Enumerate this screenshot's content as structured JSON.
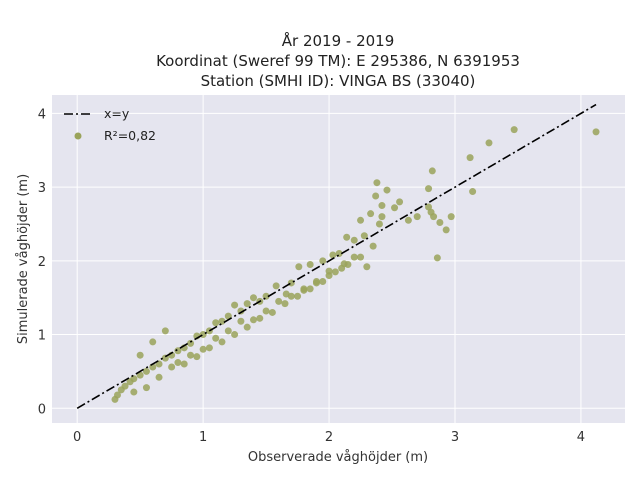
{
  "chart_data": {
    "type": "scatter",
    "title_lines": [
      "År 2019 - 2019",
      "Koordinat (Sweref 99 TM): E 295386, N 6391953",
      "Station (SMHI ID): VINGA BS (33040)"
    ],
    "xlabel": "Observerade våghöjder (m)",
    "ylabel": "Simulerade våghöjder (m)",
    "xlim": [
      -0.2,
      4.35
    ],
    "ylim": [
      -0.2,
      4.25
    ],
    "xticks": [
      0,
      1,
      2,
      3,
      4
    ],
    "yticks": [
      0,
      1,
      2,
      3,
      4
    ],
    "xtick_labels": [
      "0",
      "1",
      "2",
      "3",
      "4"
    ],
    "ytick_labels": [
      "0",
      "1",
      "2",
      "3",
      "4"
    ],
    "grid": true,
    "legend_position": "top-left",
    "series": [
      {
        "name": "x=y",
        "kind": "line",
        "style": "dash-dot",
        "color": "#000000",
        "x": [
          0,
          4.12
        ],
        "y": [
          0,
          4.12
        ]
      },
      {
        "name": "R²=0,82",
        "kind": "scatter",
        "color": "#9aa35a",
        "x": [
          4.12,
          3.47,
          3.27,
          3.12,
          3.14,
          2.97,
          2.93,
          2.88,
          2.86,
          2.82,
          2.79,
          2.79,
          2.81,
          2.83,
          2.7,
          2.63,
          2.56,
          2.52,
          2.46,
          2.42,
          2.42,
          2.38,
          2.37,
          2.33,
          2.4,
          2.35,
          2.28,
          2.25,
          2.3,
          2.2,
          2.14,
          2.12,
          2.08,
          2.03,
          2.0,
          1.95,
          1.9,
          1.85,
          1.8,
          1.76,
          1.7,
          1.66,
          1.58,
          1.5,
          1.45,
          1.4,
          1.35,
          1.3,
          1.25,
          1.2,
          1.15,
          1.1,
          1.05,
          1.0,
          0.95,
          0.9,
          0.85,
          0.8,
          0.75,
          0.7,
          0.65,
          0.6,
          0.55,
          0.5,
          0.45,
          0.42,
          0.38,
          0.35,
          0.32,
          0.3,
          0.45,
          0.55,
          0.65,
          0.75,
          0.85,
          0.95,
          1.05,
          1.15,
          1.25,
          1.35,
          1.45,
          1.55,
          1.65,
          1.75,
          1.85,
          1.95,
          2.05,
          2.15,
          2.25,
          0.5,
          0.6,
          0.7,
          0.8,
          0.9,
          1.0,
          1.1,
          1.2,
          1.3,
          1.4,
          1.5,
          1.6,
          1.7,
          1.8,
          1.9,
          2.0,
          2.1,
          2.2
        ],
        "y": [
          3.75,
          3.78,
          3.6,
          3.4,
          2.94,
          2.6,
          2.42,
          2.52,
          2.04,
          3.22,
          2.98,
          2.73,
          2.66,
          2.6,
          2.6,
          2.55,
          2.8,
          2.72,
          2.96,
          2.75,
          2.6,
          3.06,
          2.88,
          2.64,
          2.5,
          2.2,
          2.34,
          2.55,
          1.92,
          2.28,
          2.32,
          1.96,
          2.1,
          2.08,
          1.86,
          2.0,
          1.7,
          1.95,
          1.62,
          1.92,
          1.7,
          1.55,
          1.66,
          1.52,
          1.45,
          1.5,
          1.42,
          1.32,
          1.4,
          1.25,
          1.18,
          1.16,
          1.05,
          1.0,
          0.98,
          0.88,
          0.82,
          0.78,
          0.72,
          0.68,
          0.6,
          0.56,
          0.5,
          0.45,
          0.4,
          0.36,
          0.3,
          0.25,
          0.18,
          0.12,
          0.22,
          0.28,
          0.42,
          0.56,
          0.6,
          0.7,
          0.82,
          0.9,
          1.0,
          1.1,
          1.22,
          1.3,
          1.42,
          1.52,
          1.62,
          1.72,
          1.85,
          1.95,
          2.05,
          0.72,
          0.9,
          1.05,
          0.62,
          0.72,
          0.8,
          0.95,
          1.05,
          1.18,
          1.2,
          1.32,
          1.45,
          1.52,
          1.6,
          1.72,
          1.8,
          1.9,
          2.05
        ]
      }
    ]
  }
}
